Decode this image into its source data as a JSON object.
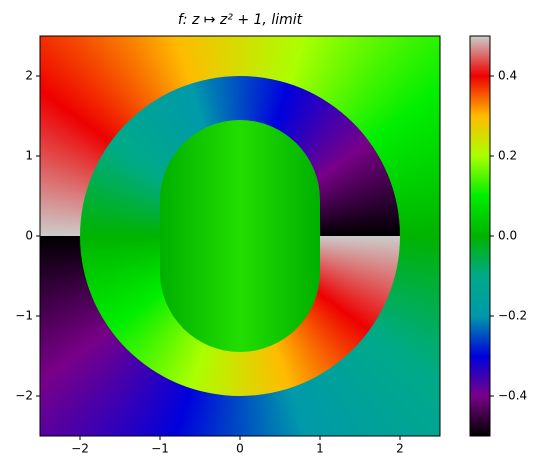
{
  "chart_data": {
    "type": "domain-coloring",
    "title": "f: z ↦ z² + 1, limit",
    "xlim": [
      -2.5,
      2.5
    ],
    "ylim": [
      -2.5,
      2.5
    ],
    "xticks": [
      {
        "value": -2,
        "label": "−2"
      },
      {
        "value": -1,
        "label": "−1"
      },
      0,
      1,
      2
    ],
    "yticks": [
      {
        "value": -2,
        "label": "−2"
      },
      {
        "value": -1,
        "label": "−1"
      },
      0,
      1,
      2
    ],
    "clim": [
      -0.5,
      0.5
    ],
    "colorbar_ticks": [
      {
        "value": -0.4,
        "label": "−0.4"
      },
      {
        "value": -0.2,
        "label": "−0.2"
      },
      {
        "value": 0,
        "label": "0.0"
      },
      0.2,
      0.4
    ],
    "colormap": [
      "#000000",
      "#780088",
      "#0000dd",
      "#0099aa",
      "#00aa88",
      "#00b300",
      "#00ee00",
      "#aaff00",
      "#ffbb00",
      "#ee0000",
      "#cccccc"
    ]
  }
}
